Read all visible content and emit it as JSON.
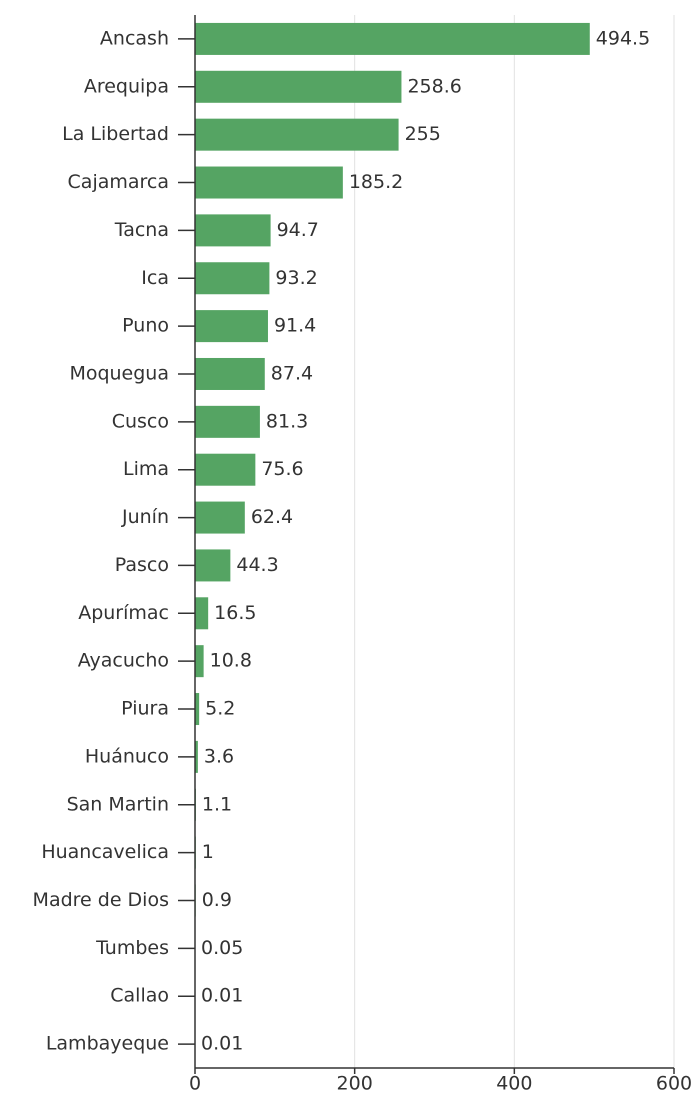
{
  "chart_data": {
    "type": "bar",
    "orientation": "horizontal",
    "categories": [
      "Ancash",
      "Arequipa",
      "La Libertad",
      "Cajamarca",
      "Tacna",
      "Ica",
      "Puno",
      "Moquegua",
      "Cusco",
      "Lima",
      "Junín",
      "Pasco",
      "Apurímac",
      "Ayacucho",
      "Piura",
      "Huánuco",
      "San Martin",
      "Huancavelica",
      "Madre de Dios",
      "Tumbes",
      "Callao",
      "Lambayeque"
    ],
    "values": [
      494.5,
      258.6,
      255,
      185.2,
      94.7,
      93.2,
      91.4,
      87.4,
      81.3,
      75.6,
      62.4,
      44.3,
      16.5,
      10.8,
      5.2,
      3.6,
      1.1,
      1,
      0.9,
      0.05,
      0.01,
      0.01
    ],
    "color": "#55a463",
    "xlim": [
      0,
      600
    ],
    "xticks": [
      0,
      200,
      400,
      600
    ],
    "grid": true
  }
}
